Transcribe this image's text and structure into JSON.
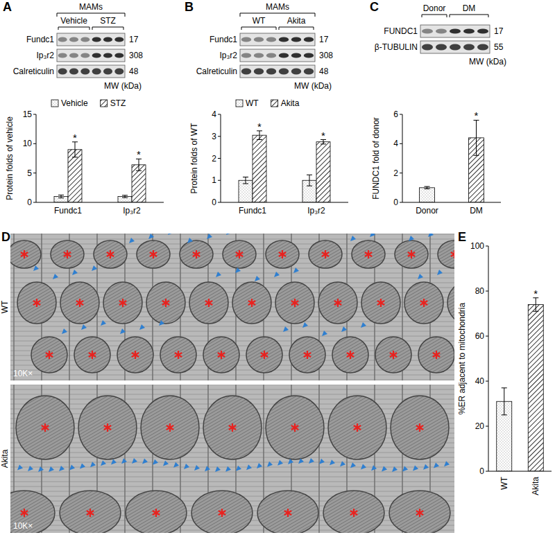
{
  "panel_letters": [
    "A",
    "B",
    "C",
    "D",
    "E"
  ],
  "blots": [
    {
      "header": "MAMs",
      "groups": [
        {
          "label": "Vehicle",
          "lanes": 3
        },
        {
          "label": "STZ",
          "lanes": 3
        }
      ],
      "rows": [
        {
          "label": "Fundc1",
          "mw": 17
        },
        {
          "label": "Ip₃r2",
          "mw": 308
        },
        {
          "label": "Calreticulin",
          "mw": 48
        }
      ],
      "mw_unit": "MW (kDa)"
    },
    {
      "header": "MAMs",
      "groups": [
        {
          "label": "WT",
          "lanes": 3
        },
        {
          "label": "Akita",
          "lanes": 3
        }
      ],
      "rows": [
        {
          "label": "Fundc1",
          "mw": 17
        },
        {
          "label": "Ip₃r2",
          "mw": 308
        },
        {
          "label": "Calreticulin",
          "mw": 48
        }
      ],
      "mw_unit": "MW (kDa)"
    },
    {
      "groups": [
        {
          "label": "Donor",
          "lanes": 2
        },
        {
          "label": "DM",
          "lanes": 3
        }
      ],
      "rows": [
        {
          "label": "FUNDC1",
          "mw": 17
        },
        {
          "label": "β-TUBULIN",
          "mw": 55
        }
      ],
      "mw_unit": "MW (kDa)"
    }
  ],
  "micrograph": {
    "rows": [
      {
        "label": "WT",
        "magnification": "10K×"
      },
      {
        "label": "Akita",
        "magnification": "10K×"
      }
    ]
  },
  "chart_data": [
    {
      "type": "bar",
      "y_label": "Protein folds of vehicle",
      "categories": [
        "Fundc1",
        "Ip₃r2"
      ],
      "series": [
        {
          "name": "Vehicle",
          "color": "#ffffff",
          "values": [
            1,
            1
          ],
          "errors": [
            0.25,
            0.2
          ]
        },
        {
          "name": "STZ",
          "color": "#ffffff",
          "values": [
            9,
            6.4
          ],
          "errors": [
            1.3,
            1.0
          ],
          "significance": [
            "*",
            "*"
          ]
        }
      ],
      "ylim": [
        0,
        15
      ],
      "yticks": [
        0,
        5,
        10,
        15
      ],
      "legend": "top",
      "grid": false
    },
    {
      "type": "bar",
      "y_label": "Protein folds of WT",
      "categories": [
        "Fundc1",
        "Ip₃r2"
      ],
      "series": [
        {
          "name": "WT",
          "color": "#ffffff",
          "values": [
            1,
            1
          ],
          "errors": [
            0.15,
            0.25
          ]
        },
        {
          "name": "Akita",
          "color": "#ffffff",
          "values": [
            3.05,
            2.75
          ],
          "errors": [
            0.2,
            0.1
          ],
          "significance": [
            "*",
            "*"
          ]
        }
      ],
      "ylim": [
        0,
        4
      ],
      "yticks": [
        0,
        1,
        2,
        3,
        4
      ],
      "legend": "top",
      "grid": false
    },
    {
      "type": "bar",
      "y_label": "FUNDC1 fold of donor",
      "categories": [
        "Donor",
        "DM"
      ],
      "series": [
        {
          "color": "#ffffff",
          "values": [
            1,
            4.4
          ],
          "errors": [
            0.08,
            1.2
          ],
          "significance": [
            null,
            "*"
          ]
        }
      ],
      "ylim": [
        0,
        6
      ],
      "yticks": [
        0,
        2,
        4,
        6
      ],
      "grid": false
    },
    {
      "type": "bar",
      "y_label": "%ER adjacent to mitochondria",
      "categories": [
        "WT",
        "Akita"
      ],
      "series": [
        {
          "color": "#ffffff",
          "values": [
            31,
            74
          ],
          "errors": [
            6,
            3
          ],
          "significance": [
            null,
            "*"
          ]
        }
      ],
      "ylim": [
        0,
        100
      ],
      "yticks": [
        0,
        20,
        40,
        60,
        80,
        100
      ],
      "grid": false
    }
  ]
}
